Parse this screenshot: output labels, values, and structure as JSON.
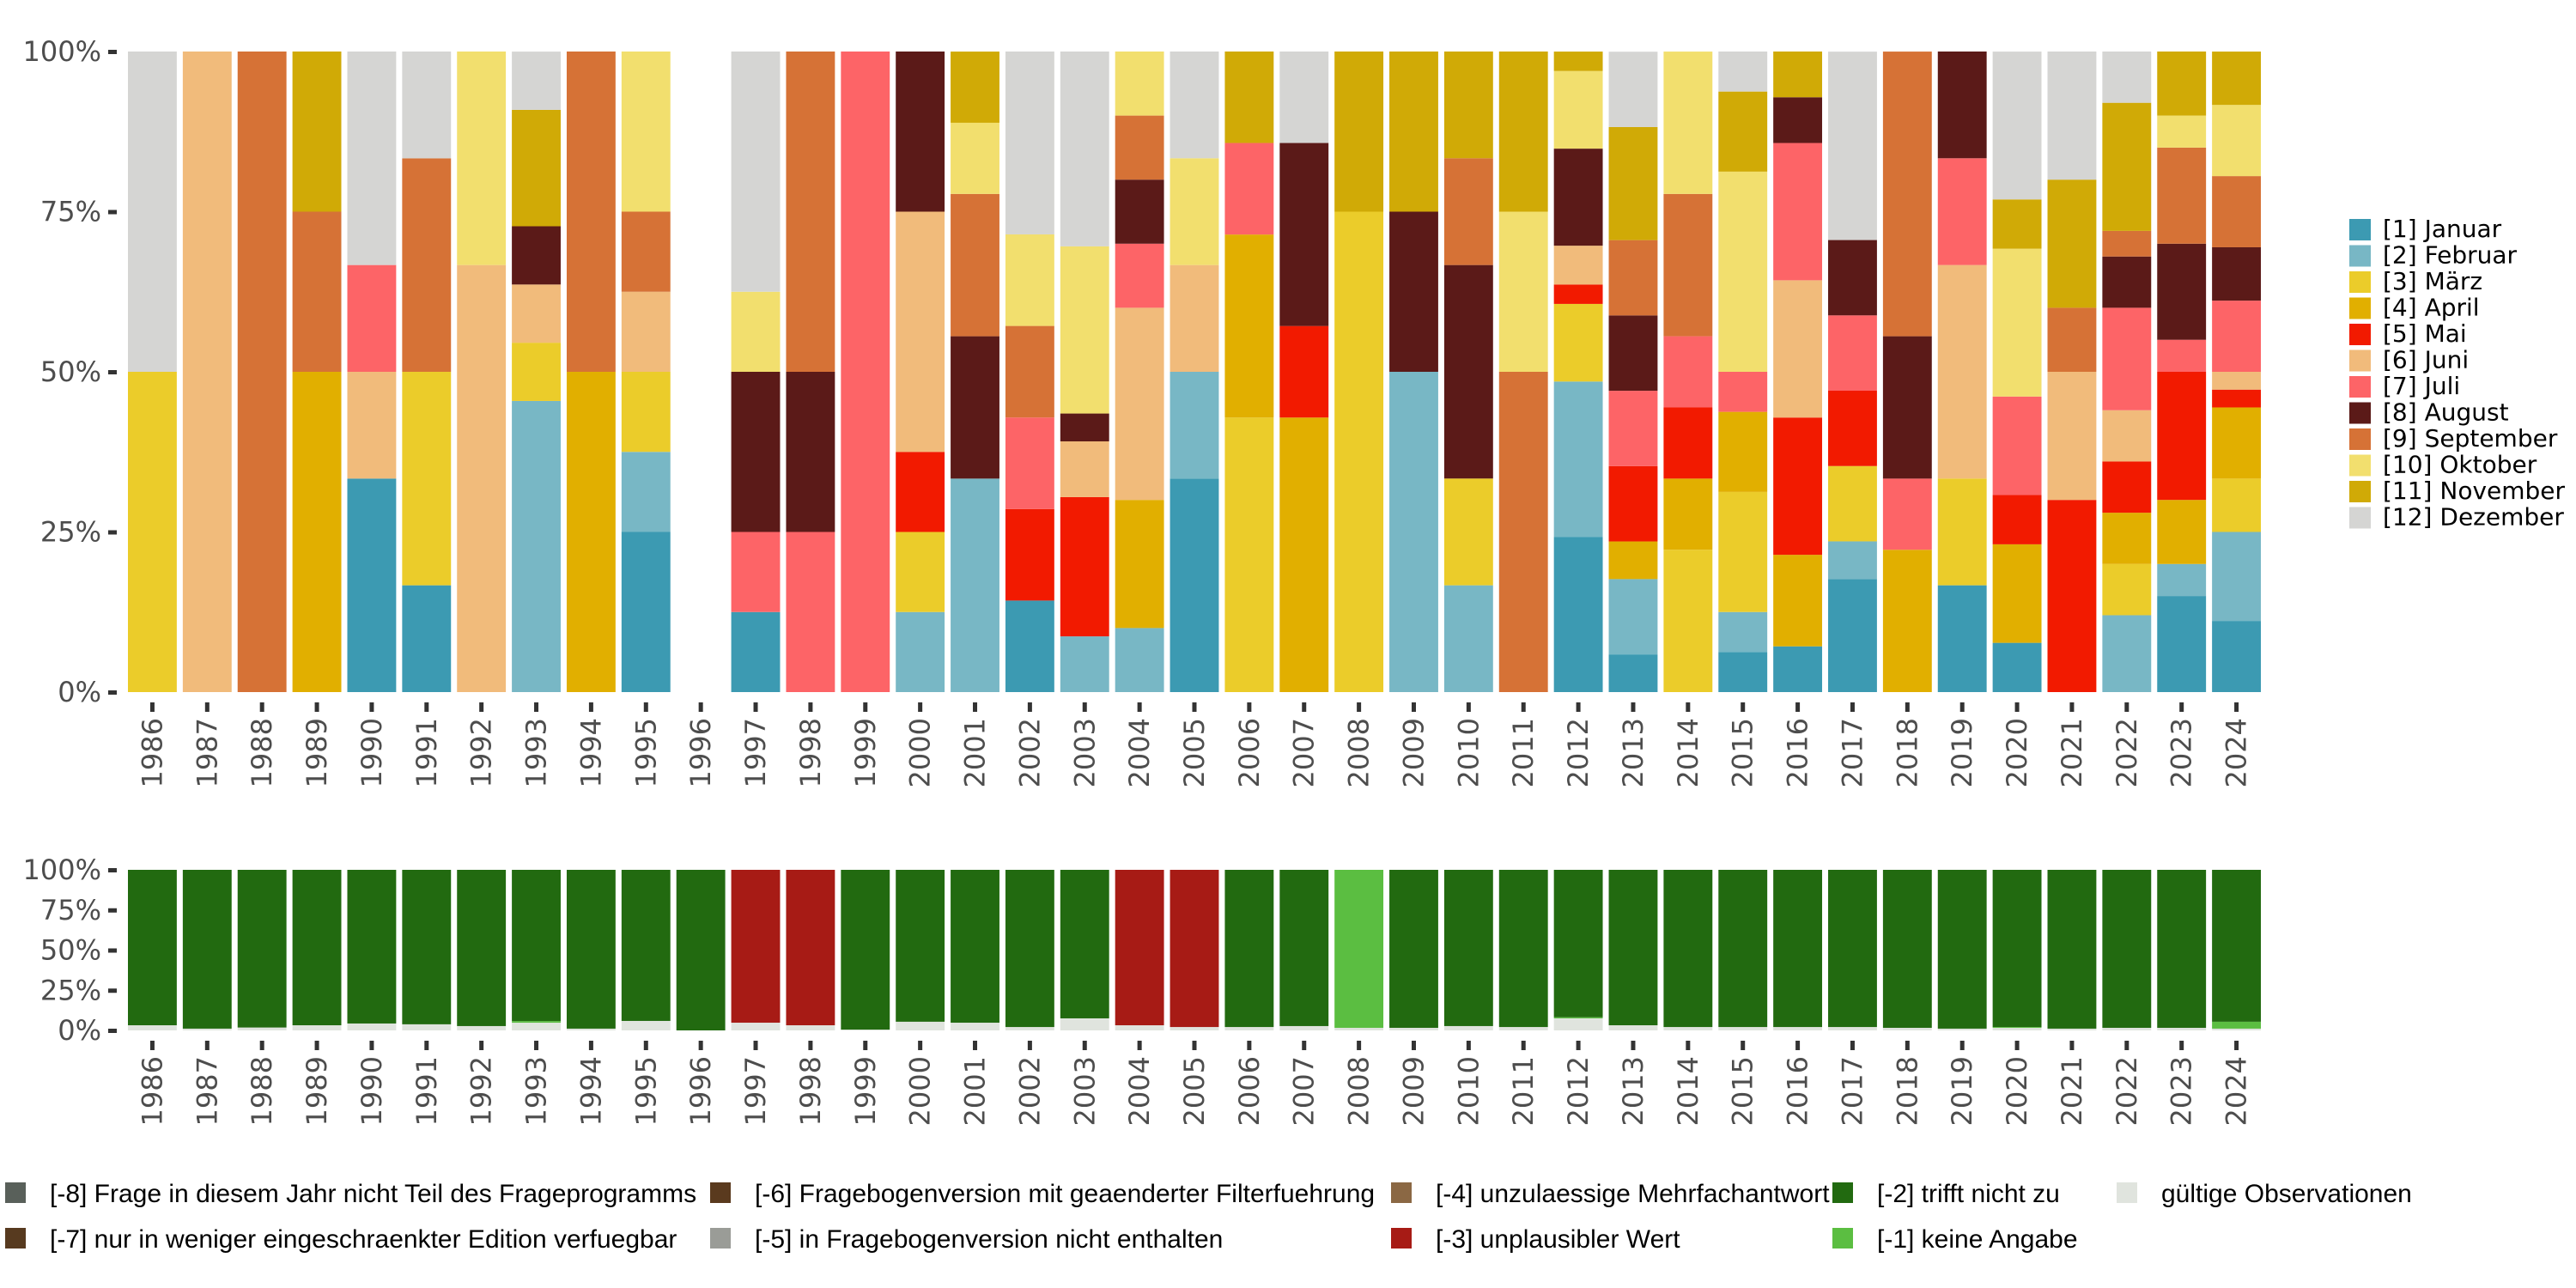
{
  "chart_data": [
    {
      "type": "bar",
      "stacked": true,
      "normalized": true,
      "title": "",
      "xlabel": "",
      "ylabel": "",
      "ylim": [
        0,
        1
      ],
      "yticks": [
        "0%",
        "25%",
        "50%",
        "75%",
        "100%"
      ],
      "legend_position": "right",
      "categories": [
        "1986",
        "1987",
        "1988",
        "1989",
        "1990",
        "1991",
        "1992",
        "1993",
        "1994",
        "1995",
        "1996",
        "1997",
        "1998",
        "1999",
        "2000",
        "2001",
        "2002",
        "2003",
        "2004",
        "2005",
        "2006",
        "2007",
        "2008",
        "2009",
        "2010",
        "2011",
        "2012",
        "2013",
        "2014",
        "2015",
        "2016",
        "2017",
        "2018",
        "2019",
        "2020",
        "2021",
        "2022",
        "2023",
        "2024"
      ],
      "series": [
        {
          "name": "[1] Januar",
          "color": "#3C9AB2",
          "values": [
            0,
            0,
            0,
            0,
            0.3333,
            0.1667,
            0,
            0,
            0,
            0.25,
            0,
            0.125,
            0,
            0,
            0,
            0,
            0.1429,
            0,
            0,
            0.3333,
            0,
            0,
            0,
            0,
            0,
            0,
            0.2424,
            0.0588,
            0,
            0.0625,
            0.0714,
            0.1765,
            0,
            0.1667,
            0.0769,
            0,
            0,
            0.15,
            0.1111
          ]
        },
        {
          "name": "[2] Februar",
          "color": "#78B7C5",
          "values": [
            0,
            0,
            0,
            0,
            0,
            0,
            0,
            0.4545,
            0,
            0.125,
            0,
            0,
            0,
            0,
            0.125,
            0.3333,
            0,
            0.087,
            0.1,
            0.1667,
            0,
            0,
            0,
            0.5,
            0.1667,
            0,
            0.2424,
            0.1176,
            0,
            0.0625,
            0,
            0.0588,
            0,
            0,
            0,
            0,
            0.12,
            0.05,
            0.1389
          ]
        },
        {
          "name": "[3] März",
          "color": "#EBCC2A",
          "values": [
            0.5,
            0,
            0,
            0,
            0,
            0.3333,
            0,
            0.0909,
            0,
            0.125,
            0,
            0,
            0,
            0,
            0.125,
            0,
            0,
            0,
            0,
            0,
            0.4286,
            0,
            0.75,
            0,
            0.1667,
            0,
            0.1212,
            0,
            0.2222,
            0.1875,
            0,
            0.1176,
            0,
            0.1667,
            0,
            0,
            0.08,
            0,
            0.0833
          ]
        },
        {
          "name": "[4] April",
          "color": "#E1AF00",
          "values": [
            0,
            0,
            0,
            0.5,
            0,
            0,
            0,
            0,
            0.5,
            0,
            0,
            0,
            0,
            0,
            0,
            0,
            0,
            0,
            0.2,
            0,
            0.2857,
            0.4286,
            0,
            0,
            0,
            0,
            0,
            0.0588,
            0.1111,
            0.125,
            0.1429,
            0,
            0.2222,
            0,
            0.1538,
            0,
            0.08,
            0.1,
            0.1111
          ]
        },
        {
          "name": "[5] Mai",
          "color": "#F21A00",
          "values": [
            0,
            0,
            0,
            0,
            0,
            0,
            0,
            0,
            0,
            0,
            0,
            0,
            0,
            0,
            0.125,
            0,
            0.1429,
            0.2174,
            0,
            0,
            0,
            0.1429,
            0,
            0,
            0,
            0,
            0.0303,
            0.1176,
            0.1111,
            0,
            0.2143,
            0.1176,
            0,
            0,
            0.0769,
            0.3,
            0.08,
            0.2,
            0.0278
          ]
        },
        {
          "name": "[6] Juni",
          "color": "#F1BB7B",
          "values": [
            0,
            1,
            0,
            0,
            0.1667,
            0,
            0.6667,
            0.0909,
            0,
            0.125,
            0,
            0,
            0,
            0,
            0.375,
            0,
            0,
            0.087,
            0.3,
            0.1667,
            0,
            0,
            0,
            0,
            0,
            0,
            0.0606,
            0,
            0,
            0,
            0.2143,
            0,
            0,
            0.3333,
            0,
            0.2,
            0.08,
            0,
            0.0278
          ]
        },
        {
          "name": "[7] Juli",
          "color": "#FD6467",
          "values": [
            0,
            0,
            0,
            0,
            0.1667,
            0,
            0,
            0,
            0,
            0,
            0,
            0.125,
            0.25,
            1,
            0,
            0,
            0.1429,
            0,
            0.1,
            0,
            0.1429,
            0,
            0,
            0,
            0,
            0,
            0,
            0.1176,
            0.1111,
            0.0625,
            0.2143,
            0.1176,
            0.1111,
            0.1667,
            0.1538,
            0,
            0.16,
            0.05,
            0.1111
          ]
        },
        {
          "name": "[8] August",
          "color": "#5B1A18",
          "values": [
            0,
            0,
            0,
            0,
            0,
            0,
            0,
            0.0909,
            0,
            0,
            0,
            0.25,
            0.25,
            0,
            0.25,
            0.2222,
            0,
            0.0435,
            0.1,
            0,
            0,
            0.2857,
            0,
            0.25,
            0.3333,
            0,
            0.1515,
            0.1176,
            0,
            0,
            0.0714,
            0.1176,
            0.2222,
            0.1667,
            0,
            0,
            0.08,
            0.15,
            0.0833
          ]
        },
        {
          "name": "[9] September",
          "color": "#D67236",
          "values": [
            0,
            0,
            1,
            0.25,
            0,
            0.3333,
            0,
            0,
            0.5,
            0.125,
            0,
            0,
            0.5,
            0,
            0,
            0.2222,
            0.1429,
            0,
            0.1,
            0,
            0,
            0,
            0,
            0,
            0.1667,
            0.5,
            0,
            0.1176,
            0.2222,
            0,
            0,
            0,
            0.4444,
            0,
            0,
            0.1,
            0.04,
            0.15,
            0.1111
          ]
        },
        {
          "name": "[10] Oktober",
          "color": "#F2DF6E",
          "values": [
            0,
            0,
            0,
            0,
            0,
            0,
            0.3333,
            0,
            0,
            0.25,
            0,
            0.125,
            0,
            0,
            0,
            0.1111,
            0.1429,
            0.2609,
            0.1,
            0.1667,
            0,
            0,
            0,
            0,
            0,
            0.25,
            0.1212,
            0,
            0.2222,
            0.3125,
            0,
            0,
            0,
            0,
            0.2308,
            0,
            0,
            0.05,
            0.1111
          ]
        },
        {
          "name": "[11] November",
          "color": "#D0AA06",
          "values": [
            0,
            0,
            0,
            0.25,
            0,
            0,
            0,
            0.1818,
            0,
            0,
            0,
            0,
            0,
            0,
            0,
            0.1111,
            0,
            0,
            0,
            0,
            0.1429,
            0,
            0.25,
            0.25,
            0.1667,
            0.25,
            0.0303,
            0.1765,
            0,
            0.125,
            0.0714,
            0,
            0,
            0,
            0.0769,
            0.2,
            0.2,
            0.1,
            0.0833
          ]
        },
        {
          "name": "[12] Dezember",
          "color": "#D5D5D3",
          "values": [
            0.5,
            0,
            0,
            0,
            0.3333,
            0.1667,
            0,
            0.0909,
            0,
            0,
            0,
            0.375,
            0,
            0,
            0,
            0,
            0.2857,
            0.3043,
            0,
            0.1667,
            0,
            0.1429,
            0,
            0,
            0,
            0,
            0,
            0.1176,
            0,
            0.0625,
            0,
            0.2941,
            0,
            0,
            0.2308,
            0.2,
            0.08,
            0,
            0
          ]
        }
      ]
    },
    {
      "type": "bar",
      "stacked": true,
      "normalized": true,
      "title": "",
      "xlabel": "",
      "ylabel": "",
      "ylim": [
        0,
        1
      ],
      "yticks": [
        "0%",
        "25%",
        "50%",
        "75%",
        "100%"
      ],
      "legend_position": "bottom",
      "categories": [
        "1986",
        "1987",
        "1988",
        "1989",
        "1990",
        "1991",
        "1992",
        "1993",
        "1994",
        "1995",
        "1996",
        "1997",
        "1998",
        "1999",
        "2000",
        "2001",
        "2002",
        "2003",
        "2004",
        "2005",
        "2006",
        "2007",
        "2008",
        "2009",
        "2010",
        "2011",
        "2012",
        "2013",
        "2014",
        "2015",
        "2016",
        "2017",
        "2018",
        "2019",
        "2020",
        "2021",
        "2022",
        "2023",
        "2024"
      ],
      "series": [
        {
          "name": "gültige Observationen",
          "color": "#E0E4DE",
          "values": [
            0.032,
            0.011,
            0.018,
            0.032,
            0.043,
            0.038,
            0.027,
            0.048,
            0.011,
            0.059,
            0,
            0.048,
            0.032,
            0.005,
            0.054,
            0.048,
            0.021,
            0.075,
            0.032,
            0.021,
            0.021,
            0.027,
            0.016,
            0.016,
            0.027,
            0.021,
            0.075,
            0.032,
            0.021,
            0.021,
            0.021,
            0.021,
            0.016,
            0.011,
            0.016,
            0.011,
            0.016,
            0.016,
            0.011
          ]
        },
        {
          "name": "[-1] keine Angabe",
          "color": "#5BBE41",
          "values": [
            0,
            0,
            0,
            0,
            0,
            0,
            0,
            0.01,
            0,
            0,
            0,
            0,
            0,
            0,
            0,
            0,
            0,
            0,
            0,
            0,
            0,
            0,
            0.984,
            0,
            0,
            0,
            0.007,
            0,
            0,
            0,
            0,
            0,
            0,
            0,
            0.005,
            0,
            0,
            0,
            0.043
          ]
        },
        {
          "name": "[-2] trifft nicht zu",
          "color": "#226A10",
          "values": [
            0.968,
            0.989,
            0.982,
            0.968,
            0.957,
            0.962,
            0.973,
            0.942,
            0.989,
            0.941,
            1,
            0,
            0,
            0.995,
            0.946,
            0.952,
            0.979,
            0.925,
            0,
            0,
            0.979,
            0.973,
            0,
            0.984,
            0.973,
            0.979,
            0.918,
            0.968,
            0.979,
            0.979,
            0.979,
            0.979,
            0.984,
            0.989,
            0.979,
            0.989,
            0.984,
            0.984,
            0.946
          ]
        },
        {
          "name": "[-3] unplausibler Wert",
          "color": "#A71B15",
          "values": [
            0,
            0,
            0,
            0,
            0,
            0,
            0,
            0,
            0,
            0,
            0,
            0.952,
            0.968,
            0,
            0,
            0,
            0,
            0,
            0.968,
            0.979,
            0,
            0,
            0,
            0,
            0,
            0,
            0,
            0,
            0,
            0,
            0,
            0,
            0,
            0,
            0,
            0,
            0,
            0,
            0
          ]
        }
      ]
    }
  ],
  "legend_months": {
    "items": [
      {
        "label": "[1] Januar",
        "color": "#3C9AB2"
      },
      {
        "label": "[2] Februar",
        "color": "#78B7C5"
      },
      {
        "label": "[3] März",
        "color": "#EBCC2A"
      },
      {
        "label": "[4] April",
        "color": "#E1AF00"
      },
      {
        "label": "[5] Mai",
        "color": "#F21A00"
      },
      {
        "label": "[6] Juni",
        "color": "#F1BB7B"
      },
      {
        "label": "[7] Juli",
        "color": "#FD6467"
      },
      {
        "label": "[8] August",
        "color": "#5B1A18"
      },
      {
        "label": "[9] September",
        "color": "#D67236"
      },
      {
        "label": "[10] Oktober",
        "color": "#F2DF6E"
      },
      {
        "label": "[11] November",
        "color": "#D0AA06"
      },
      {
        "label": "[12] Dezember",
        "color": "#D5D5D3"
      }
    ]
  },
  "legend_missing": {
    "items": [
      {
        "label": "[-8] Frage in diesem Jahr nicht Teil des Frageprogramms",
        "color": "#59605A"
      },
      {
        "label": "[-7] nur in weniger eingeschraenkter Edition verfuegbar",
        "color": "#573A1F"
      },
      {
        "label": "[-6] Fragebogenversion mit geaenderter Filterfuehrung",
        "color": "#5A3A1E"
      },
      {
        "label": "[-5] in Fragebogenversion nicht enthalten",
        "color": "#9A9C97"
      },
      {
        "label": "[-4] unzulaessige Mehrfachantwort",
        "color": "#8B6844"
      },
      {
        "label": "[-3] unplausibler Wert",
        "color": "#A71B15"
      },
      {
        "label": "[-2] trifft nicht zu",
        "color": "#226A10"
      },
      {
        "label": "[-1] keine Angabe",
        "color": "#5BBE41"
      },
      {
        "label": "gültige Observationen",
        "color": "#E0E4DE"
      }
    ]
  }
}
